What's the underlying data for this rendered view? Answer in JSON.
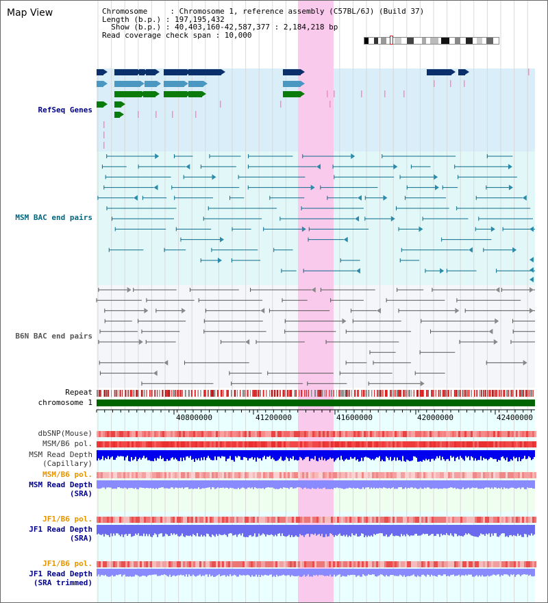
{
  "title": "Map View",
  "info": {
    "line1": "Chromosome     : Chromosome 1, reference assembly (C57BL/6J) (Build 37)",
    "line2": "Length (b.p.) : 197,195,432",
    "line3": "  Show (b.p.) : 40,403,160-42,587,377 : 2,184,218 bp",
    "line4": "Read coverage check span : 10,000"
  },
  "tracks": {
    "refseq": "RefSeq Genes",
    "msm_bac": "MSM BAC end pairs",
    "b6n_bac": "B6N BAC end pairs",
    "repeat": "Repeat",
    "chromosome": "chromosome 1",
    "dbsnp": "dbSNP(Mouse)",
    "msm_b6_pol_1": "MSM/B6 pol.",
    "msm_read_depth_cap_1": "MSM Read Depth",
    "msm_read_depth_cap_2": "(Capillary)",
    "msm_b6_pol_2": "MSM/B6 pol.",
    "msm_read_depth_sra_1": "MSM Read Depth",
    "msm_read_depth_sra_2": "(SRA)",
    "jf1_b6_pol_1": "JF1/B6 pol.",
    "jf1_read_depth_sra_1": "JF1 Read Depth",
    "jf1_read_depth_sra_2": "(SRA)",
    "jf1_b6_pol_2": "JF1/B6 pol.",
    "jf1_read_depth_trim_1": "JF1 Read Depth",
    "jf1_read_depth_trim_2": "(SRA trimmed)"
  },
  "axis": {
    "ticks": [
      "40800000",
      "41200000",
      "41600000",
      "42000000",
      "42400000"
    ]
  },
  "colors": {
    "highlight": "#f9d6f0",
    "refseq_bg": "#d9eef8",
    "msm_bg": "#e2f8f8",
    "b6n_bg": "#f4f6fa",
    "gene_navy": "#0a2f6b",
    "gene_steel": "#4a97c2",
    "gene_green": "#0a7a0a",
    "msm_line": "#0a6a8a",
    "b6n_line": "#555555",
    "chromosome_bar": "#006400",
    "depth_blue": "#0000ee",
    "depth_light": "#8080ff"
  }
}
